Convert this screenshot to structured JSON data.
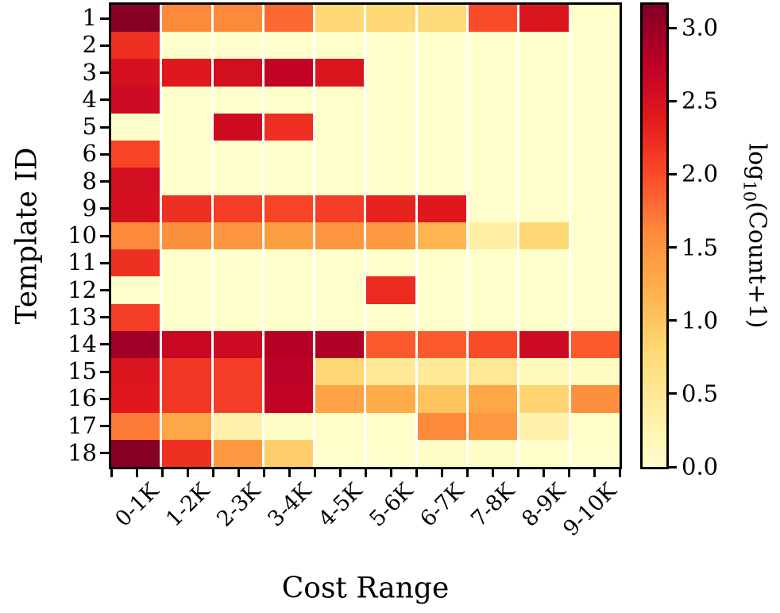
{
  "axes": {
    "x": {
      "title": "Cost Range",
      "tick_labels": [
        "0-1K",
        "1-2K",
        "2-3K",
        "3-4K",
        "4-5K",
        "5-6K",
        "6-7K",
        "7-8K",
        "8-9K",
        "9-10K"
      ]
    },
    "y": {
      "title": "Template ID",
      "tick_labels": [
        "1",
        "2",
        "3",
        "4",
        "5",
        "6",
        "8",
        "9",
        "10",
        "11",
        "12",
        "13",
        "14",
        "15",
        "16",
        "17",
        "18"
      ]
    }
  },
  "colorbar": {
    "label": {
      "prefix": "log",
      "sub": "10",
      "suffix": "(Count+1)"
    },
    "tick_labels": [
      "3.0",
      "2.5",
      "2.0",
      "1.5",
      "1.0",
      "0.5",
      "0.0"
    ],
    "tick_values": [
      3.0,
      2.5,
      2.0,
      1.5,
      1.0,
      0.5,
      0.0
    ]
  },
  "chart_data": {
    "type": "heatmap",
    "title": "",
    "xlabel": "Cost Range",
    "ylabel": "Template ID",
    "colorbar_label": "log10(Count+1)",
    "x_categories": [
      "0-1K",
      "1-2K",
      "2-3K",
      "3-4K",
      "4-5K",
      "5-6K",
      "6-7K",
      "7-8K",
      "8-9K",
      "9-10K"
    ],
    "y_categories": [
      "1",
      "2",
      "3",
      "4",
      "5",
      "6",
      "8",
      "9",
      "10",
      "11",
      "12",
      "13",
      "14",
      "15",
      "16",
      "17",
      "18"
    ],
    "vmin": 0,
    "vmax": 3.158,
    "colormap": "YlOrRd",
    "colormap_stops": [
      "#ffffcc",
      "#ffeda0",
      "#fed976",
      "#feb24c",
      "#fd8d3c",
      "#fc4e2a",
      "#e31a1c",
      "#bd0026",
      "#800026"
    ],
    "values_log10_count_plus_1": [
      [
        3.12,
        1.6,
        1.6,
        1.8,
        0.8,
        0.8,
        0.75,
        2.0,
        2.45,
        0.0
      ],
      [
        2.2,
        0.0,
        0.0,
        0.0,
        0.0,
        0.0,
        0.0,
        0.0,
        0.0,
        0.0
      ],
      [
        2.5,
        2.4,
        2.55,
        2.7,
        2.45,
        0.0,
        0.0,
        0.0,
        0.0,
        0.0
      ],
      [
        2.6,
        0.0,
        0.0,
        0.0,
        0.0,
        0.0,
        0.0,
        0.0,
        0.0,
        0.0
      ],
      [
        0.0,
        0.0,
        2.6,
        2.2,
        0.0,
        0.0,
        0.0,
        0.0,
        0.0,
        0.0
      ],
      [
        2.05,
        0.0,
        0.0,
        0.0,
        0.0,
        0.0,
        0.0,
        0.0,
        0.0,
        0.0
      ],
      [
        2.55,
        0.0,
        0.0,
        0.0,
        0.0,
        0.0,
        0.0,
        0.0,
        0.0,
        0.0
      ],
      [
        2.5,
        2.2,
        2.1,
        2.05,
        2.1,
        2.3,
        2.4,
        0.0,
        0.0,
        0.0
      ],
      [
        1.6,
        1.55,
        1.5,
        1.4,
        1.5,
        1.45,
        1.15,
        0.35,
        0.8,
        0.0
      ],
      [
        2.2,
        0.0,
        0.0,
        0.0,
        0.0,
        0.0,
        0.0,
        0.0,
        0.0,
        0.0
      ],
      [
        0.0,
        0.0,
        0.0,
        0.0,
        0.0,
        2.25,
        0.0,
        0.0,
        0.0,
        0.0
      ],
      [
        2.1,
        0.0,
        0.0,
        0.0,
        0.0,
        0.0,
        0.0,
        0.0,
        0.0,
        0.0
      ],
      [
        2.95,
        2.65,
        2.6,
        2.8,
        2.85,
        1.9,
        1.9,
        2.0,
        2.6,
        1.9
      ],
      [
        2.45,
        2.15,
        2.1,
        2.75,
        0.8,
        0.45,
        0.45,
        0.5,
        0.15,
        0.08
      ],
      [
        2.4,
        2.15,
        2.1,
        2.7,
        1.35,
        1.25,
        1.0,
        1.3,
        0.85,
        1.55
      ],
      [
        1.7,
        1.3,
        0.3,
        0.05,
        0.03,
        0.03,
        1.6,
        1.45,
        0.3,
        0.03
      ],
      [
        3.12,
        2.2,
        1.45,
        0.9,
        0.0,
        0.0,
        0.05,
        0.05,
        0.03,
        0.0
      ]
    ]
  }
}
